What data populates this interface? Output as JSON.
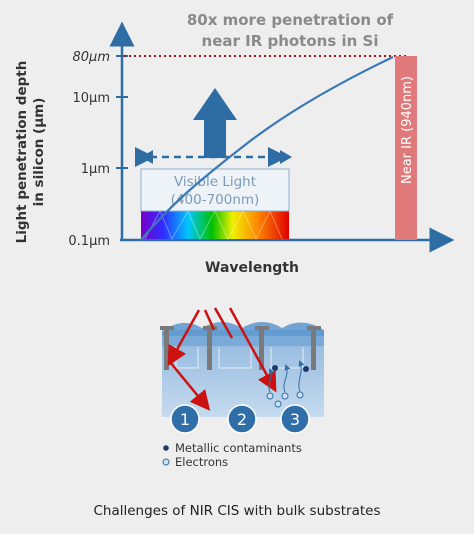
{
  "header": {
    "line1": "80x more penetration of",
    "line2": "near IR photons in Si"
  },
  "axes": {
    "ylabel_line1": "Light penetration depth",
    "ylabel_line2": "in silicon (µm)",
    "xlabel": "Wavelength",
    "yticks": [
      "80µm",
      "10µm",
      "1µm",
      "0.1µm"
    ]
  },
  "visible_band": {
    "label_line1": "Visible Light",
    "label_line2": "(400-700nm)"
  },
  "nir_band": {
    "label": "Near IR (940nm)"
  },
  "substrate": {
    "markers": [
      "1",
      "2",
      "3"
    ]
  },
  "legend": {
    "contaminants": "Metallic contaminants",
    "electrons": "Electrons"
  },
  "caption": "Challenges of NIR CIS with bulk substrates",
  "colors": {
    "axis": "#2e6da4",
    "curve": "#3a78b5",
    "nir_bar": "#e07a7a",
    "red_line": "#cc1111",
    "substrate": "#a9c9e8",
    "marker": "#2f6ea8",
    "big_arrow": "#2e6da4"
  }
}
